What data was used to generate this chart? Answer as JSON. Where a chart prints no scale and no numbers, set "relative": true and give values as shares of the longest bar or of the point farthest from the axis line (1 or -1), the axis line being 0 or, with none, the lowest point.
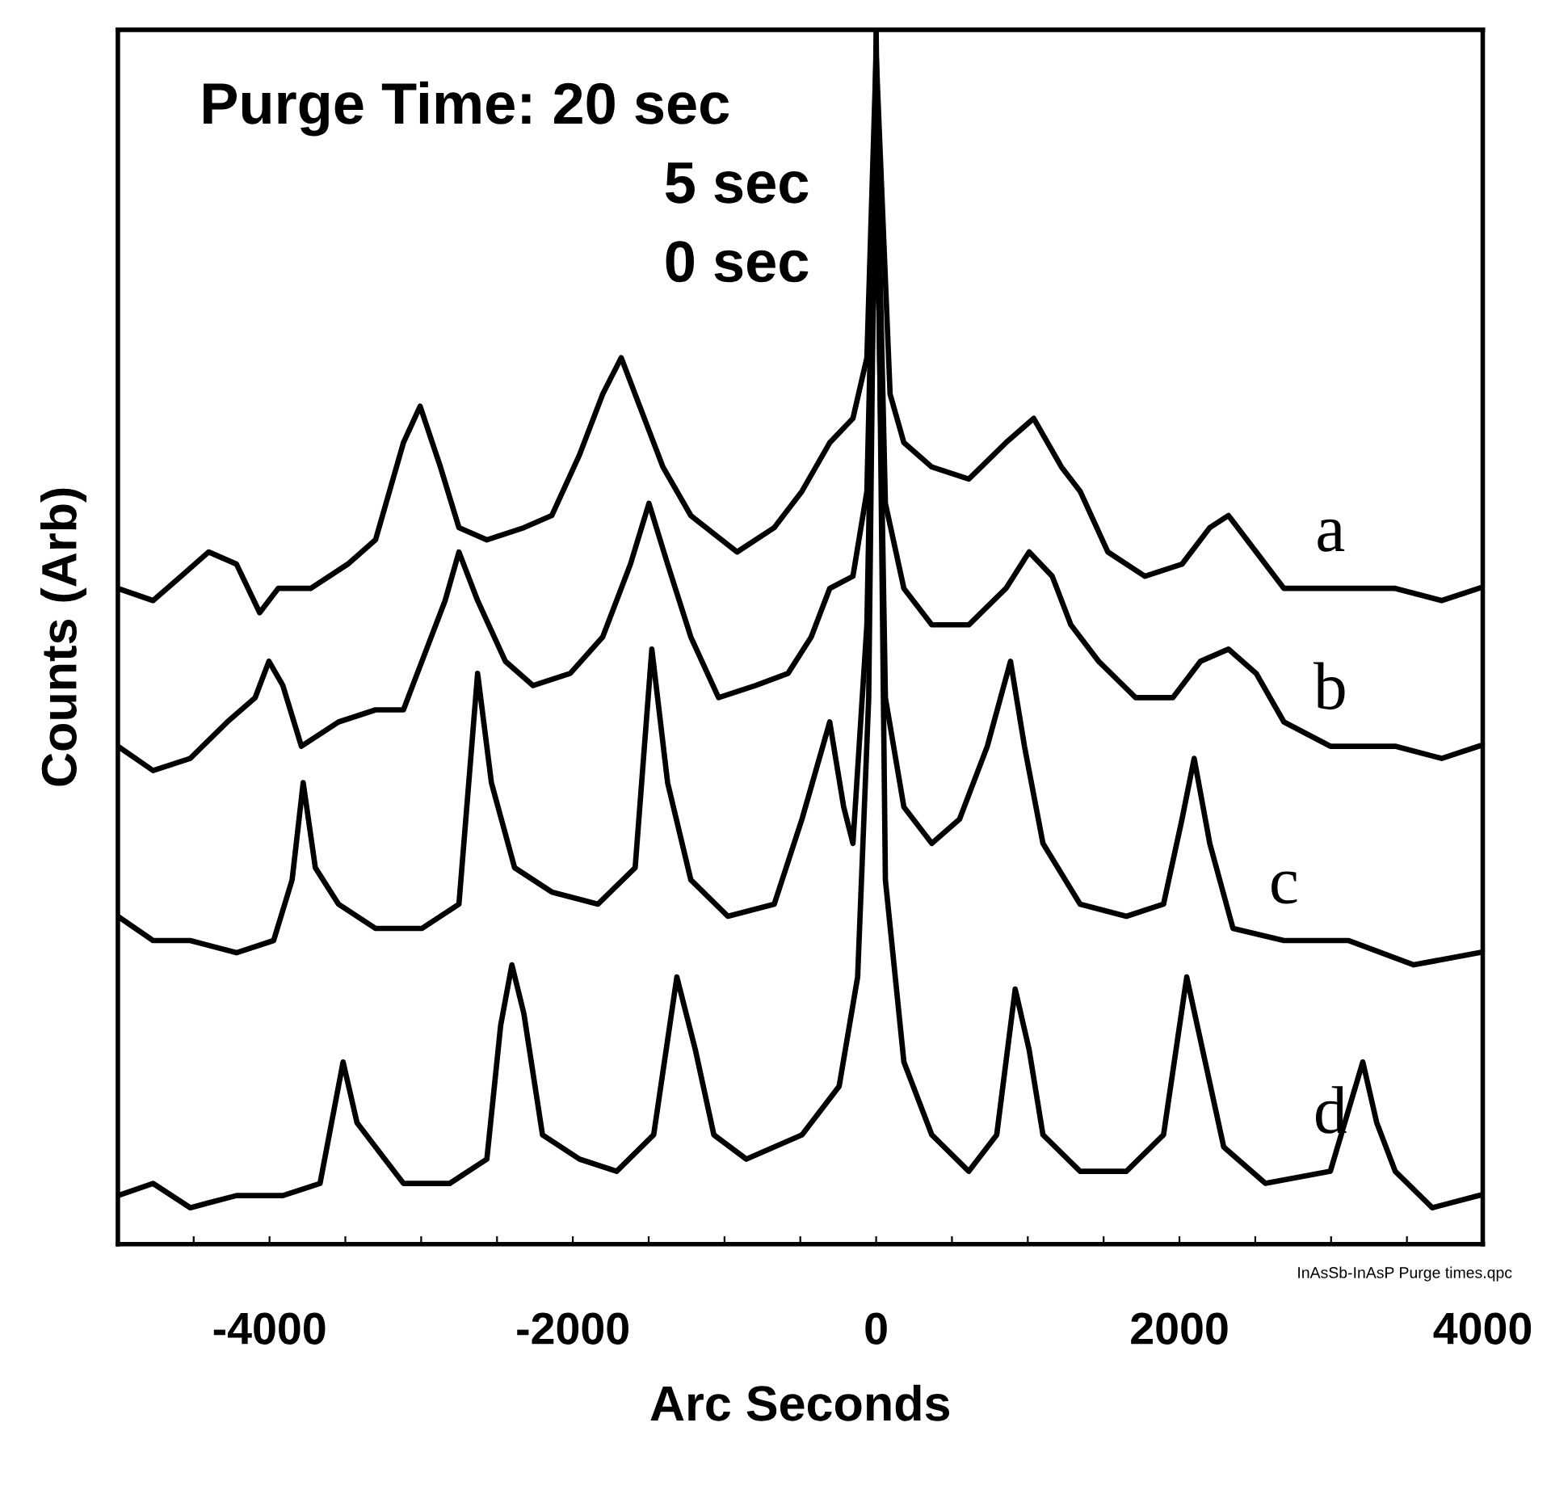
{
  "chart_data": {
    "type": "line",
    "xlabel": "Arc Seconds",
    "ylabel": "Counts (Arb)",
    "relative": true,
    "tick_labels": "x",
    "grid": false,
    "legend": false,
    "marker": "none",
    "line_style": "solid",
    "xlim": [
      -5000,
      4000
    ],
    "xticks": [
      {
        "value": -4500,
        "label": null
      },
      -4000,
      {
        "value": -3500,
        "label": null
      },
      {
        "value": -3000,
        "label": null
      },
      {
        "value": -2500,
        "label": null
      },
      -2000,
      {
        "value": -1500,
        "label": null
      },
      {
        "value": -1000,
        "label": null
      },
      {
        "value": -500,
        "label": null
      },
      0,
      {
        "value": 500,
        "label": null
      },
      {
        "value": 1000,
        "label": null
      },
      {
        "value": 1500,
        "label": null
      },
      2000,
      {
        "value": 2500,
        "label": null
      },
      {
        "value": 3000,
        "label": null
      },
      {
        "value": 3500,
        "label": null
      },
      4000
    ],
    "annotations": [
      "Purge Time: 20 sec",
      "5 sec",
      "0 sec",
      "InAsSb-InAsP Purge times.qpc"
    ],
    "series": [
      {
        "name": "a",
        "color": "#000000",
        "x": [
          -5000,
          -4768,
          -4584,
          -4401,
          -4218,
          -4065,
          -3943,
          -3729,
          -3484,
          -3301,
          -3117,
          -3007,
          -2873,
          -2751,
          -2567,
          -2323,
          -2139,
          -1956,
          -1803,
          -1681,
          -1559,
          -1406,
          -1222,
          -917,
          -672,
          -489,
          -306,
          -153,
          -61,
          0,
          92,
          183,
          367,
          611,
          856,
          1039,
          1222,
          1345,
          1528,
          1773,
          2017,
          2200,
          2323,
          2506,
          2689,
          2995,
          3423,
          3729,
          3973
        ],
        "values": [
          0.54,
          0.53,
          0.55,
          0.57,
          0.56,
          0.52,
          0.54,
          0.54,
          0.56,
          0.58,
          0.66,
          0.69,
          0.64,
          0.59,
          0.58,
          0.59,
          0.6,
          0.65,
          0.7,
          0.73,
          0.69,
          0.64,
          0.6,
          0.57,
          0.59,
          0.62,
          0.66,
          0.68,
          0.73,
          0.98,
          0.7,
          0.66,
          0.64,
          0.63,
          0.66,
          0.68,
          0.64,
          0.62,
          0.57,
          0.55,
          0.56,
          0.59,
          0.6,
          0.57,
          0.54,
          0.54,
          0.54,
          0.53,
          0.54
        ]
      },
      {
        "name": "b",
        "color": "#000000",
        "x": [
          -5000,
          -4768,
          -4523,
          -4279,
          -4095,
          -4004,
          -3912,
          -3790,
          -3545,
          -3301,
          -3117,
          -2995,
          -2842,
          -2751,
          -2628,
          -2445,
          -2262,
          -2017,
          -1803,
          -1620,
          -1498,
          -1375,
          -1222,
          -1039,
          -795,
          -581,
          -428,
          -306,
          -153,
          -61,
          0,
          61,
          183,
          367,
          611,
          856,
          1009,
          1161,
          1284,
          1467,
          1711,
          1956,
          2139,
          2323,
          2506,
          2689,
          2995,
          3423,
          3729,
          3973
        ],
        "values": [
          0.41,
          0.39,
          0.4,
          0.43,
          0.45,
          0.48,
          0.46,
          0.41,
          0.43,
          0.44,
          0.44,
          0.48,
          0.53,
          0.57,
          0.53,
          0.48,
          0.46,
          0.47,
          0.5,
          0.56,
          0.61,
          0.56,
          0.5,
          0.45,
          0.46,
          0.47,
          0.5,
          0.54,
          0.55,
          0.62,
          0.94,
          0.61,
          0.54,
          0.51,
          0.51,
          0.54,
          0.57,
          0.55,
          0.51,
          0.48,
          0.45,
          0.45,
          0.48,
          0.49,
          0.47,
          0.43,
          0.41,
          0.41,
          0.4,
          0.41
        ]
      },
      {
        "name": "c",
        "color": "#000000",
        "x": [
          -5000,
          -4768,
          -4523,
          -4218,
          -3973,
          -3851,
          -3778,
          -3698,
          -3545,
          -3301,
          -2995,
          -2751,
          -2628,
          -2537,
          -2384,
          -2139,
          -1834,
          -1589,
          -1479,
          -1375,
          -1222,
          -978,
          -672,
          -489,
          -306,
          -214,
          -153,
          -61,
          0,
          61,
          183,
          367,
          550,
          733,
          886,
          978,
          1100,
          1345,
          1650,
          1895,
          2017,
          2097,
          2200,
          2353,
          2689,
          3117,
          3545,
          3973
        ],
        "values": [
          0.27,
          0.25,
          0.25,
          0.24,
          0.25,
          0.3,
          0.38,
          0.31,
          0.28,
          0.26,
          0.26,
          0.28,
          0.47,
          0.38,
          0.31,
          0.29,
          0.28,
          0.31,
          0.49,
          0.38,
          0.3,
          0.27,
          0.28,
          0.35,
          0.43,
          0.36,
          0.33,
          0.51,
          0.9,
          0.45,
          0.36,
          0.33,
          0.35,
          0.41,
          0.48,
          0.41,
          0.33,
          0.28,
          0.27,
          0.28,
          0.35,
          0.4,
          0.33,
          0.26,
          0.25,
          0.25,
          0.23,
          0.24
        ]
      },
      {
        "name": "d",
        "color": "#000000",
        "x": [
          -5000,
          -4768,
          -4523,
          -4218,
          -3912,
          -3667,
          -3606,
          -3515,
          -3423,
          -3301,
          -3117,
          -2812,
          -2567,
          -2476,
          -2402,
          -2323,
          -2200,
          -1956,
          -1711,
          -1467,
          -1314,
          -1192,
          -1070,
          -856,
          -489,
          -244,
          -122,
          -49,
          0,
          61,
          183,
          367,
          611,
          795,
          917,
          1009,
          1100,
          1345,
          1650,
          1895,
          2048,
          2170,
          2292,
          2567,
          2995,
          3209,
          3301,
          3423,
          3667,
          3973
        ],
        "values": [
          0.04,
          0.05,
          0.03,
          0.04,
          0.04,
          0.05,
          0.09,
          0.15,
          0.1,
          0.08,
          0.05,
          0.05,
          0.07,
          0.18,
          0.23,
          0.19,
          0.09,
          0.07,
          0.06,
          0.09,
          0.22,
          0.16,
          0.09,
          0.07,
          0.09,
          0.13,
          0.22,
          0.45,
          1.0,
          0.3,
          0.15,
          0.09,
          0.06,
          0.09,
          0.21,
          0.16,
          0.09,
          0.06,
          0.06,
          0.09,
          0.22,
          0.15,
          0.08,
          0.05,
          0.06,
          0.15,
          0.1,
          0.06,
          0.03,
          0.04
        ]
      }
    ]
  }
}
